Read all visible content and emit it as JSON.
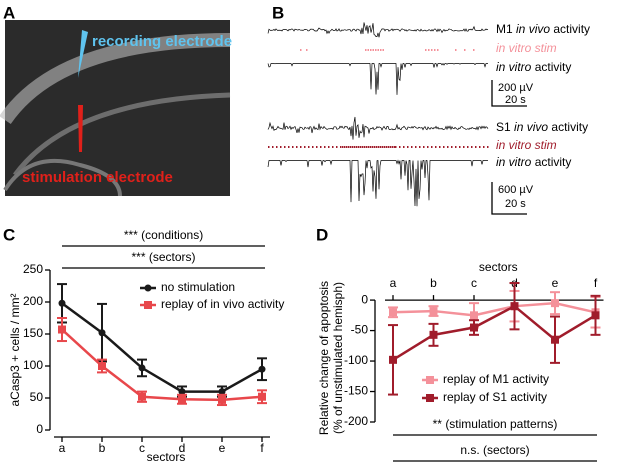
{
  "panel_labels": [
    "A",
    "B",
    "C",
    "D"
  ],
  "panel_a": {
    "recording": "recording electrode",
    "stimulation": "stimulation electrode"
  },
  "panel_b": {
    "m1_in_vivo": [
      "M1",
      "in vivo",
      "activity"
    ],
    "m1_stim": "in vitro stim",
    "m1_in_vitro": [
      "in vitro",
      "activity"
    ],
    "scale1": [
      "200 µV",
      "20 s"
    ],
    "s1_in_vivo": [
      "S1",
      "in vivo",
      "activity"
    ],
    "s1_stim": "in vitro stim",
    "s1_in_vitro": [
      "in vitro",
      "activity"
    ],
    "scale2": [
      "600 µV",
      "20 s"
    ]
  },
  "chart_data": [
    {
      "type": "line",
      "ylabel": [
        "aCasp3 + cells / mm²"
      ],
      "xlabel": "sectors",
      "categories": [
        "a",
        "b",
        "c",
        "d",
        "e",
        "f"
      ],
      "series": [
        {
          "name": "no stimulation",
          "color": "#1a1a1a",
          "values": [
            198,
            152,
            97,
            60,
            60,
            95
          ],
          "errors": [
            30,
            45,
            13,
            8,
            8,
            17
          ]
        },
        {
          "name": "replay of in vivo activity",
          "color": "#e8474b",
          "values": [
            157,
            100,
            52,
            48,
            47,
            52
          ],
          "errors": [
            18,
            10,
            8,
            7,
            8,
            10
          ]
        }
      ],
      "ylim": [
        0,
        250
      ],
      "yticks": [
        0,
        50,
        100,
        150,
        200,
        250
      ],
      "annotations": [
        "*** (conditions)",
        "*** (sectors)"
      ]
    },
    {
      "type": "line",
      "ylabel": [
        "Relative change of apoptosis",
        "(% of unstimulated hemisph)"
      ],
      "xlabel": "sectors",
      "categories": [
        "a",
        "b",
        "c",
        "d",
        "e",
        "f"
      ],
      "series": [
        {
          "name": "replay of M1 activity",
          "color": "#f4919a",
          "values": [
            -20,
            -18,
            -25,
            -10,
            -5,
            -20
          ],
          "errors": [
            8,
            8,
            20,
            25,
            18,
            25
          ]
        },
        {
          "name": "replay of S1 activity",
          "color": "#a01c2b",
          "values": [
            -98,
            -57,
            -45,
            -10,
            -65,
            -25
          ],
          "errors": [
            57,
            18,
            12,
            38,
            38,
            32
          ]
        }
      ],
      "ylim": [
        -200,
        10
      ],
      "yticks": [
        -200,
        -150,
        -100,
        -50,
        0
      ],
      "annotations": [
        "** (stimulation patterns)",
        "n.s. (sectors)"
      ]
    }
  ]
}
